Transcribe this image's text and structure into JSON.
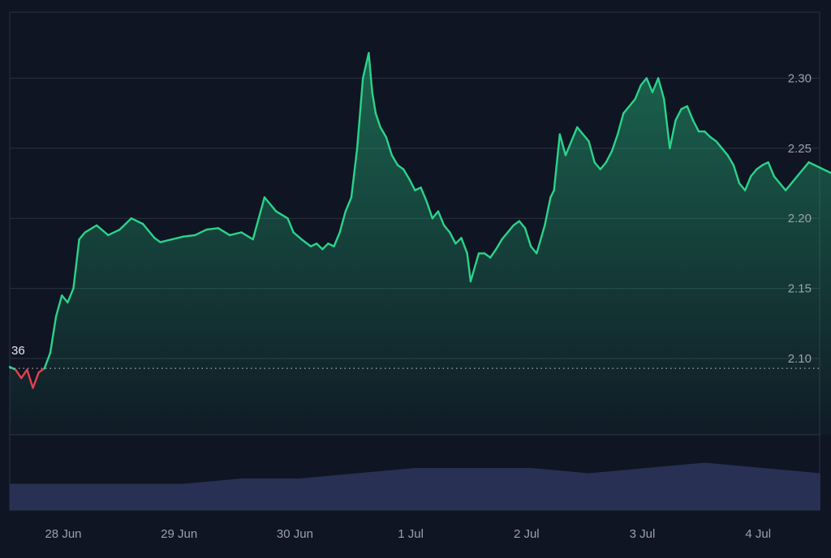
{
  "chart_data": {
    "type": "area",
    "baseline": {
      "value": 2.093,
      "label": "36"
    },
    "x_ticks": [
      "28 Jun",
      "29 Jun",
      "30 Jun",
      "1 Jul",
      "2 Jul",
      "3 Jul",
      "4 Jul"
    ],
    "y_ticks": [
      2.1,
      2.15,
      2.2,
      2.25,
      2.3
    ],
    "ylim": [
      2.045,
      2.35
    ],
    "grid": true,
    "price_axis_side": "right",
    "colors": {
      "up": "#2bd38a",
      "down": "#e5404f",
      "volume": "#2a3357",
      "grid": "#2a3243",
      "axis_text": "#9aa1ad",
      "background": "#0f1523"
    },
    "series": [
      {
        "x": [
          0.0,
          0.05,
          0.1,
          0.15,
          0.2,
          0.25,
          0.3,
          0.35,
          0.4,
          0.45,
          0.5,
          0.55,
          0.6,
          0.65,
          0.75,
          0.85,
          0.95,
          1.05,
          1.15,
          1.25,
          1.3,
          1.4,
          1.5,
          1.6,
          1.7,
          1.8,
          1.9,
          2.0,
          2.1,
          2.2,
          2.3,
          2.4,
          2.45,
          2.52,
          2.6,
          2.65,
          2.7,
          2.75,
          2.8,
          2.85,
          2.9,
          2.95,
          3.0,
          3.05,
          3.1,
          3.13,
          3.16,
          3.2,
          3.25,
          3.3,
          3.35,
          3.4,
          3.45,
          3.5,
          3.55,
          3.6,
          3.65,
          3.7,
          3.75,
          3.8,
          3.85,
          3.9,
          3.95,
          3.98,
          4.05,
          4.1,
          4.15,
          4.2,
          4.25,
          4.3,
          4.35,
          4.4,
          4.45,
          4.5,
          4.55,
          4.62,
          4.67,
          4.7,
          4.75,
          4.8,
          4.9,
          5.0,
          5.05,
          5.1,
          5.15,
          5.2,
          5.25,
          5.3,
          5.4,
          5.45,
          5.5,
          5.55,
          5.6,
          5.65,
          5.7,
          5.75,
          5.8,
          5.85,
          5.9,
          5.95,
          6.0,
          6.05,
          6.1,
          6.15,
          6.2,
          6.25,
          6.3,
          6.35,
          6.4,
          6.45,
          6.5,
          6.55,
          6.6,
          6.65,
          6.7,
          6.75,
          6.8,
          6.85,
          6.9,
          6.95,
          7.0,
          7.05,
          7.1,
          7.15,
          7.2,
          7.25
        ],
        "y": [
          2.094,
          2.092,
          2.086,
          2.092,
          2.079,
          2.09,
          2.093,
          2.104,
          2.13,
          2.145,
          2.14,
          2.15,
          2.185,
          2.19,
          2.195,
          2.188,
          2.192,
          2.2,
          2.196,
          2.186,
          2.183,
          2.185,
          2.187,
          2.188,
          2.192,
          2.193,
          2.188,
          2.19,
          2.185,
          2.215,
          2.205,
          2.2,
          2.19,
          2.185,
          2.18,
          2.182,
          2.178,
          2.182,
          2.18,
          2.19,
          2.205,
          2.215,
          2.25,
          2.3,
          2.318,
          2.29,
          2.275,
          2.265,
          2.258,
          2.245,
          2.238,
          2.235,
          2.228,
          2.22,
          2.222,
          2.212,
          2.2,
          2.205,
          2.195,
          2.19,
          2.182,
          2.186,
          2.175,
          2.155,
          2.175,
          2.175,
          2.172,
          2.178,
          2.185,
          2.19,
          2.195,
          2.198,
          2.193,
          2.18,
          2.175,
          2.195,
          2.215,
          2.22,
          2.26,
          2.245,
          2.265,
          2.255,
          2.24,
          2.235,
          2.24,
          2.248,
          2.26,
          2.275,
          2.285,
          2.295,
          2.3,
          2.29,
          2.3,
          2.285,
          2.25,
          2.27,
          2.278,
          2.28,
          2.27,
          2.262,
          2.262,
          2.258,
          2.255,
          2.25,
          2.245,
          2.238,
          2.225,
          2.22,
          2.23,
          2.235,
          2.238,
          2.24,
          2.23,
          2.225,
          2.22,
          2.225,
          2.23,
          2.235,
          2.24,
          2.238,
          2.236,
          2.234,
          2.232,
          2.23,
          2.228,
          2.226
        ]
      },
      {
        "x": [
          0.0,
          0.5,
          1.0,
          1.5,
          2.0,
          2.5,
          3.0,
          3.5,
          4.0,
          4.5,
          5.0,
          5.5,
          6.0,
          6.5,
          7.0
        ],
        "y": [
          0.5,
          0.5,
          0.5,
          0.5,
          0.6,
          0.6,
          0.7,
          0.8,
          0.8,
          0.8,
          0.7,
          0.8,
          0.9,
          0.8,
          0.7
        ]
      }
    ]
  }
}
